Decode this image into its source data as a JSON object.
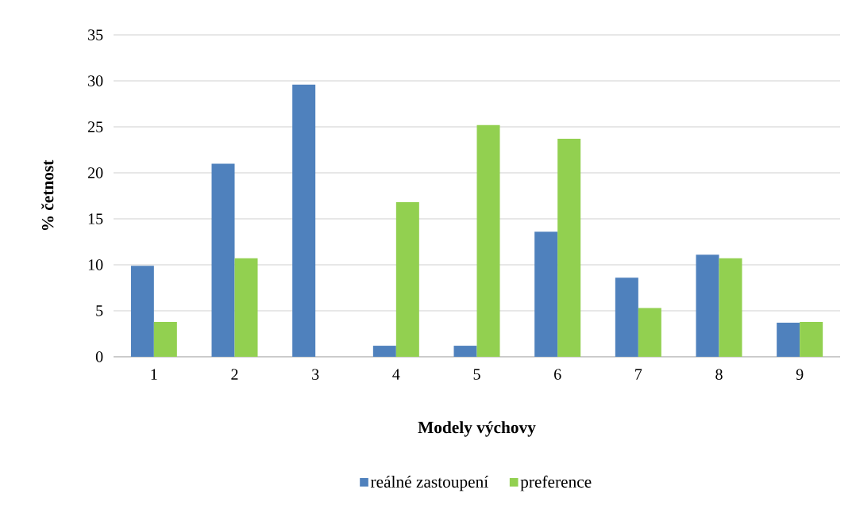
{
  "chart_data": {
    "type": "bar",
    "xlabel": "Modely výchovy",
    "ylabel": "% četnost",
    "categories": [
      "1",
      "2",
      "3",
      "4",
      "5",
      "6",
      "7",
      "8",
      "9"
    ],
    "series": [
      {
        "name": "reálné zastoupení",
        "color": "#4f81bd",
        "values": [
          9.9,
          21.0,
          29.6,
          1.2,
          1.2,
          13.6,
          8.6,
          11.1,
          3.7
        ]
      },
      {
        "name": "preference",
        "color": "#92d050",
        "values": [
          3.8,
          10.7,
          0,
          16.8,
          25.2,
          23.7,
          5.3,
          10.7,
          3.8
        ]
      }
    ],
    "ylim": [
      0,
      35
    ],
    "yticks": [
      0,
      5,
      10,
      15,
      20,
      25,
      30,
      35
    ],
    "grid": "y",
    "legend": "bottom"
  }
}
